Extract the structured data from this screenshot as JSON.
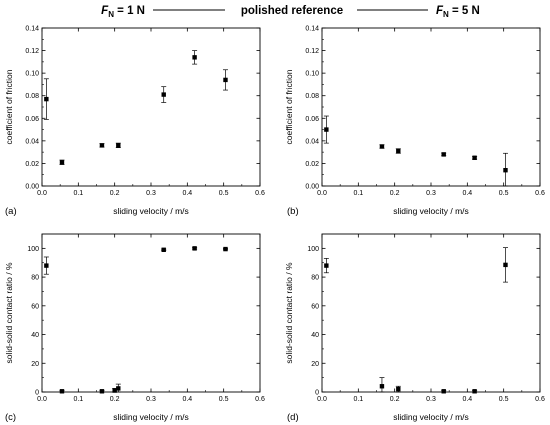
{
  "header": {
    "left": {
      "var": "F",
      "sub": "N",
      "rest": " = 1 N"
    },
    "center": "polished reference",
    "right": {
      "var": "F",
      "sub": "N",
      "rest": " = 5 N"
    }
  },
  "chart_data": [
    {
      "type": "scatter",
      "panel_label": "(a)",
      "xlabel": "sliding velocity / m/s",
      "ylabel": "coefficient of friction",
      "xlim": [
        0,
        0.6
      ],
      "ylim": [
        0,
        0.14
      ],
      "xticks": [
        "0.0",
        "0.1",
        "0.2",
        "0.3",
        "0.4",
        "0.5",
        "0.6"
      ],
      "yticks": [
        "0.00",
        "0.02",
        "0.04",
        "0.06",
        "0.08",
        "0.10",
        "0.12",
        "0.14"
      ],
      "grid": false,
      "points": [
        {
          "x": 0.012,
          "y": 0.077,
          "err": 0.018
        },
        {
          "x": 0.055,
          "y": 0.021,
          "err": 0.002
        },
        {
          "x": 0.165,
          "y": 0.036,
          "err": 0.0015
        },
        {
          "x": 0.21,
          "y": 0.036,
          "err": 0.002
        },
        {
          "x": 0.335,
          "y": 0.081,
          "err": 0.007
        },
        {
          "x": 0.42,
          "y": 0.114,
          "err": 0.006
        },
        {
          "x": 0.505,
          "y": 0.094,
          "err": 0.009
        }
      ]
    },
    {
      "type": "scatter",
      "panel_label": "(b)",
      "xlabel": "sliding velocity / m/s",
      "ylabel": "coefficient of friction",
      "xlim": [
        0,
        0.6
      ],
      "ylim": [
        0,
        0.14
      ],
      "xticks": [
        "0.0",
        "0.1",
        "0.2",
        "0.3",
        "0.4",
        "0.5",
        "0.6"
      ],
      "yticks": [
        "0.00",
        "0.02",
        "0.04",
        "0.06",
        "0.08",
        "0.10",
        "0.12",
        "0.14"
      ],
      "grid": false,
      "points": [
        {
          "x": 0.012,
          "y": 0.05,
          "err": 0.012
        },
        {
          "x": 0.165,
          "y": 0.035,
          "err": 0.0015
        },
        {
          "x": 0.21,
          "y": 0.031,
          "err": 0.002
        },
        {
          "x": 0.335,
          "y": 0.028,
          "err": 0.0012
        },
        {
          "x": 0.42,
          "y": 0.025,
          "err": 0.0012
        },
        {
          "x": 0.505,
          "y": 0.014,
          "err": 0.015
        }
      ]
    },
    {
      "type": "scatter",
      "panel_label": "(c)",
      "xlabel": "sliding velocity / m/s",
      "ylabel": "solid-solid contact ratio / %",
      "xlim": [
        0,
        0.6
      ],
      "ylim": [
        0,
        110
      ],
      "xticks": [
        "0.0",
        "0.1",
        "0.2",
        "0.3",
        "0.4",
        "0.5",
        "0.6"
      ],
      "yticks": [
        "0",
        "20",
        "40",
        "60",
        "80",
        "100"
      ],
      "grid": false,
      "points": [
        {
          "x": 0.012,
          "y": 88,
          "err": 6
        },
        {
          "x": 0.055,
          "y": 0.5,
          "err": 0.5
        },
        {
          "x": 0.165,
          "y": 0.5,
          "err": 0.5
        },
        {
          "x": 0.2,
          "y": 1,
          "err": 1.5
        },
        {
          "x": 0.21,
          "y": 2.5,
          "err": 3
        },
        {
          "x": 0.335,
          "y": 99,
          "err": 0.5
        },
        {
          "x": 0.42,
          "y": 100,
          "err": 0.5
        },
        {
          "x": 0.505,
          "y": 99.5,
          "err": 0.5
        }
      ]
    },
    {
      "type": "scatter",
      "panel_label": "(d)",
      "xlabel": "sliding velocity / m/s",
      "ylabel": "solid-solid contact ratio / %",
      "xlim": [
        0,
        0.6
      ],
      "ylim": [
        0,
        110
      ],
      "xticks": [
        "0.0",
        "0.1",
        "0.2",
        "0.3",
        "0.4",
        "0.5",
        "0.6"
      ],
      "yticks": [
        "0",
        "20",
        "40",
        "60",
        "80",
        "100"
      ],
      "grid": false,
      "points": [
        {
          "x": 0.012,
          "y": 88,
          "err": 5
        },
        {
          "x": 0.165,
          "y": 4,
          "err": 6
        },
        {
          "x": 0.21,
          "y": 2,
          "err": 2
        },
        {
          "x": 0.335,
          "y": 0.5,
          "err": 0.5
        },
        {
          "x": 0.42,
          "y": 0.5,
          "err": 0.5
        },
        {
          "x": 0.505,
          "y": 88.5,
          "err": 12
        }
      ]
    }
  ]
}
